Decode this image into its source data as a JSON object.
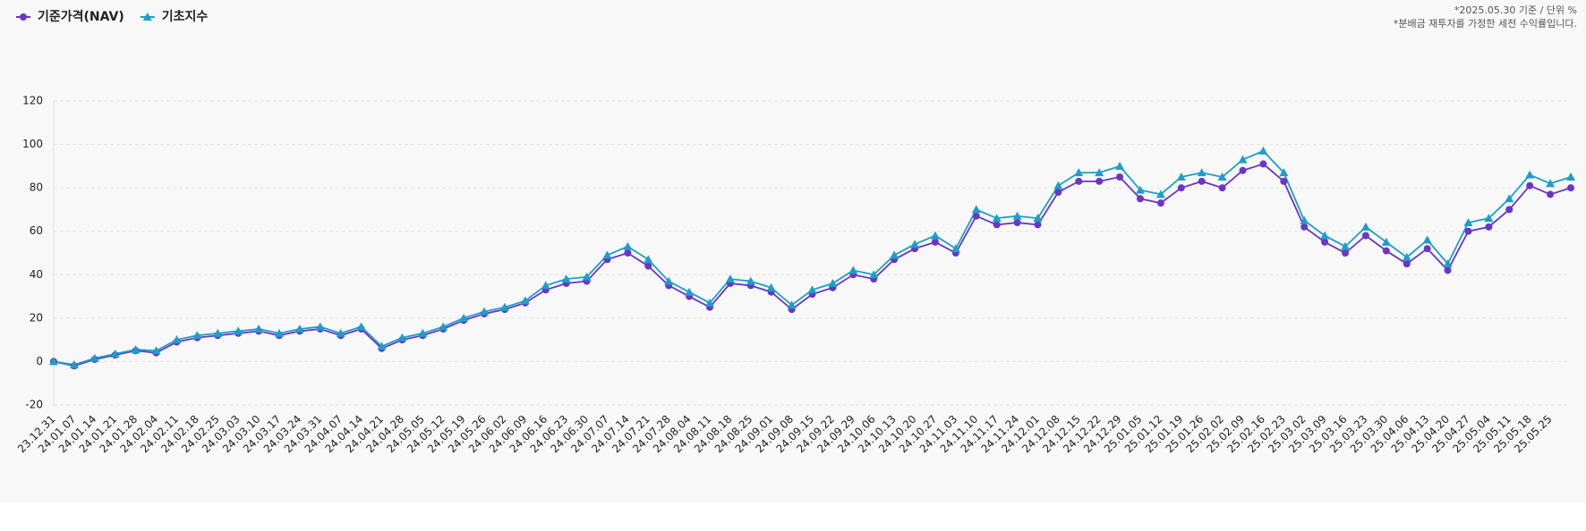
{
  "chart_data": {
    "type": "line",
    "notes": [
      "*2025.05.30 기준 / 단위 %",
      "*분배금 재투자를 가정한 세전 수익률입니다."
    ],
    "categories": [
      "23.12.31",
      "24.01.07",
      "24.01.14",
      "24.01.21",
      "24.01.28",
      "24.02.04",
      "24.02.11",
      "24.02.18",
      "24.02.25",
      "24.03.03",
      "24.03.10",
      "24.03.17",
      "24.03.24",
      "24.03.31",
      "24.04.07",
      "24.04.14",
      "24.04.21",
      "24.04.28",
      "24.05.05",
      "24.05.12",
      "24.05.19",
      "24.05.26",
      "24.06.02",
      "24.06.09",
      "24.06.16",
      "24.06.23",
      "24.06.30",
      "24.07.07",
      "24.07.14",
      "24.07.21",
      "24.07.28",
      "24.08.04",
      "24.08.11",
      "24.08.18",
      "24.08.25",
      "24.09.01",
      "24.09.08",
      "24.09.15",
      "24.09.22",
      "24.09.29",
      "24.10.06",
      "24.10.13",
      "24.10.20",
      "24.10.27",
      "24.11.03",
      "24.11.10",
      "24.11.17",
      "24.11.24",
      "24.12.01",
      "24.12.08",
      "24.12.15",
      "24.12.22",
      "24.12.29",
      "25.01.05",
      "25.01.12",
      "25.01.19",
      "25.01.26",
      "25.02.02",
      "25.02.09",
      "25.02.16",
      "25.02.23",
      "25.03.02",
      "25.03.09",
      "25.03.16",
      "25.03.23",
      "25.03.30",
      "25.04.06",
      "25.04.13",
      "25.04.20",
      "25.04.27",
      "25.05.04",
      "25.05.11",
      "25.05.18",
      "25.05.25",
      null
    ],
    "series": [
      {
        "name": "기준가격(NAV)",
        "color": "#6a35c8",
        "marker": "circle",
        "values": [
          0,
          -2,
          1,
          3,
          5,
          4,
          9,
          11,
          12,
          13,
          14,
          12,
          14,
          15,
          12,
          15,
          6,
          10,
          12,
          15,
          19,
          22,
          24,
          27,
          33,
          36,
          37,
          47,
          50,
          44,
          35,
          30,
          25,
          36,
          35,
          32,
          24,
          31,
          34,
          40,
          38,
          47,
          52,
          55,
          50,
          67,
          63,
          64,
          63,
          78,
          83,
          83,
          85,
          75,
          73,
          80,
          83,
          80,
          88,
          91,
          83,
          62,
          55,
          50,
          58,
          51,
          45,
          52,
          42,
          60,
          62,
          70,
          81,
          77,
          80
        ]
      },
      {
        "name": "기초지수",
        "color": "#1b9fca",
        "marker": "triangle",
        "values": [
          0,
          -1.5,
          1.5,
          3.5,
          5.5,
          5,
          10,
          12,
          13,
          14,
          15,
          13,
          15,
          16,
          13,
          16,
          7,
          11,
          13,
          16,
          20,
          23,
          25,
          28,
          35,
          38,
          39,
          49,
          53,
          47,
          37,
          32,
          27,
          38,
          37,
          34,
          26,
          33,
          36,
          42,
          40,
          49,
          54,
          58,
          52,
          70,
          66,
          67,
          66,
          81,
          87,
          87,
          90,
          79,
          77,
          85,
          87,
          85,
          93,
          97,
          87,
          65,
          58,
          53,
          62,
          55,
          48,
          56,
          45,
          64,
          66,
          75,
          86,
          82,
          85
        ]
      }
    ],
    "ylim": [
      -20,
      120
    ],
    "yticks": [
      -20,
      0,
      20,
      40,
      60,
      80,
      100,
      120
    ],
    "grid": true,
    "legend": "top-left"
  }
}
